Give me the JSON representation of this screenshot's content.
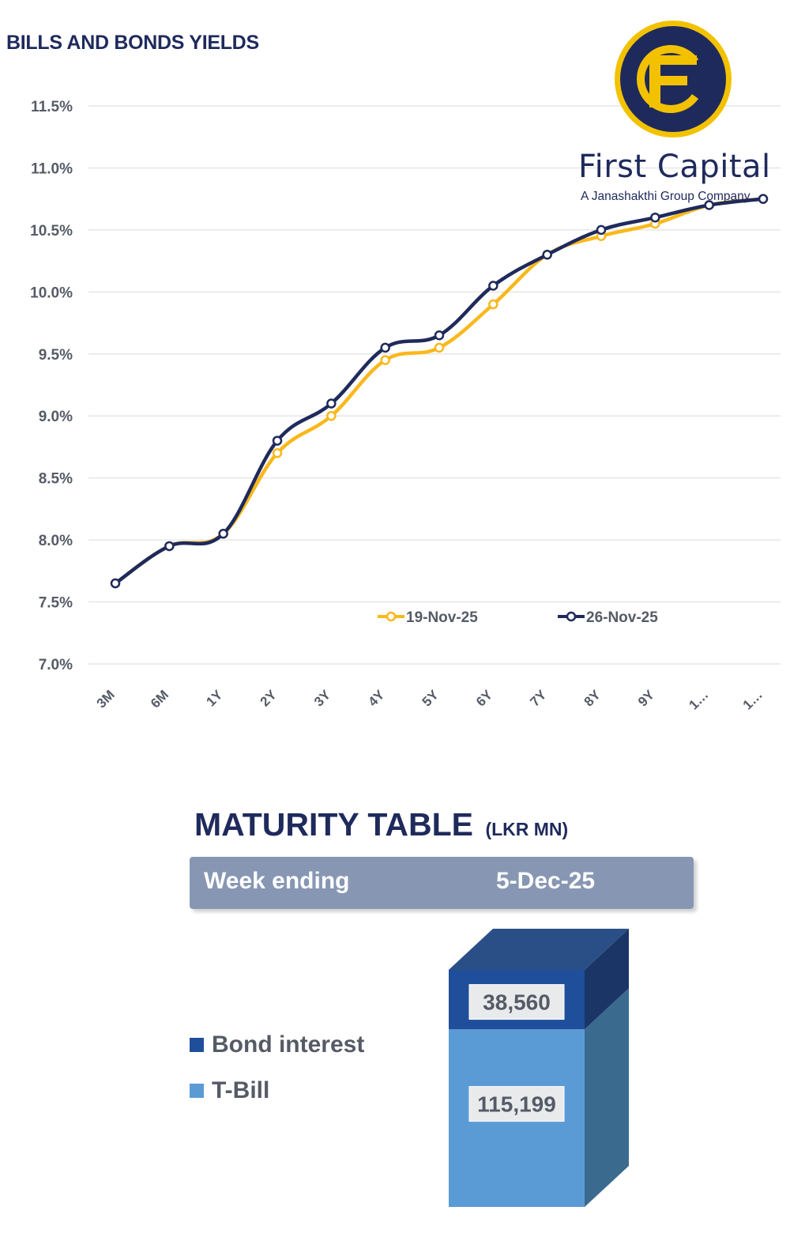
{
  "yield_chart_title": "BILLS AND BONDS YIELDS",
  "logo": {
    "monogram": "FC",
    "name": "First Capital",
    "subtitle": "A Janashakthi Group Company",
    "colors": {
      "ring": "#1f2a5c",
      "gold": "#f2c200"
    }
  },
  "colors": {
    "series_1": "#f9b81c",
    "series_2": "#1f2a5c",
    "bond_interest": "#1f4f9a",
    "t_bill": "#5b9bd5"
  },
  "chart_data": [
    {
      "type": "line",
      "title": "BILLS AND BONDS YIELDS",
      "categories": [
        "3M",
        "6M",
        "1Y",
        "2Y",
        "3Y",
        "4Y",
        "5Y",
        "6Y",
        "7Y",
        "8Y",
        "9Y",
        "1…",
        "1…"
      ],
      "series": [
        {
          "name": "19-Nov-25",
          "values": [
            7.65,
            7.95,
            8.05,
            8.7,
            9.0,
            9.45,
            9.55,
            9.9,
            10.3,
            10.45,
            10.55,
            10.7,
            10.75
          ]
        },
        {
          "name": "26-Nov-25",
          "values": [
            7.65,
            7.95,
            8.05,
            8.8,
            9.1,
            9.55,
            9.65,
            10.05,
            10.3,
            10.5,
            10.6,
            10.7,
            10.75
          ]
        }
      ],
      "y_ticks": [
        "7.0%",
        "7.5%",
        "8.0%",
        "8.5%",
        "9.0%",
        "9.5%",
        "10.0%",
        "10.5%",
        "11.0%",
        "11.5%"
      ],
      "ylim": [
        7.0,
        11.5
      ],
      "grid": true,
      "legend_position": "bottom-right"
    },
    {
      "type": "bar",
      "title": "MATURITY TABLE",
      "unit": "(LKR MN)",
      "categories": [
        "5-Dec-25"
      ],
      "series": [
        {
          "name": "T-Bill",
          "values": [
            115199
          ],
          "label": "115,199"
        },
        {
          "name": "Bond interest",
          "values": [
            38560
          ],
          "label": "38,560"
        }
      ],
      "legend": [
        "Bond interest",
        "T-Bill"
      ]
    }
  ],
  "maturity": {
    "week_label": "Week ending",
    "week_value": "5-Dec-25"
  }
}
